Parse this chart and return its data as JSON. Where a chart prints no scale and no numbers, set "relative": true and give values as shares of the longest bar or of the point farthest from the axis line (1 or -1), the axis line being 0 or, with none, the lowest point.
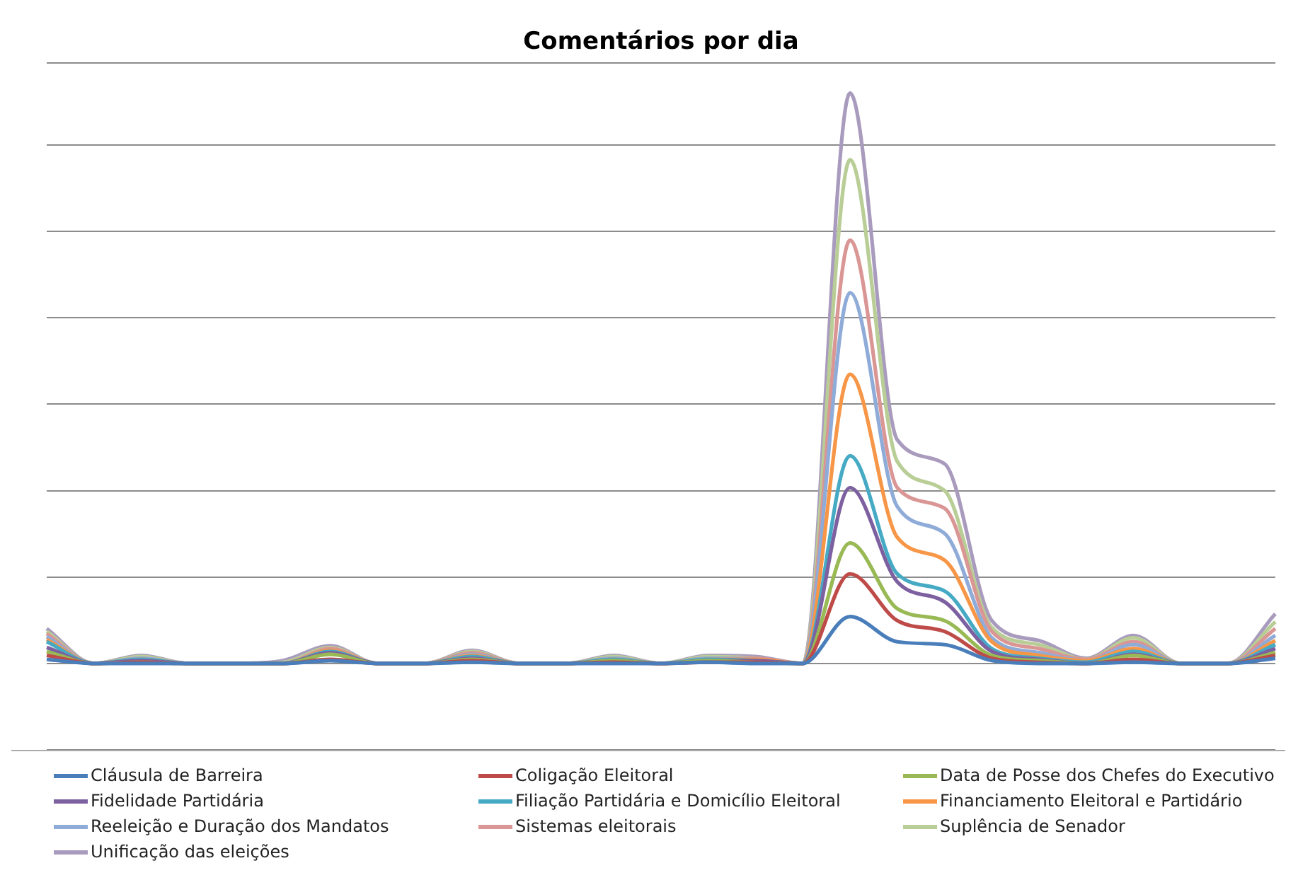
{
  "chart_data": {
    "type": "line",
    "title": "Comentários por dia",
    "relative": true,
    "grid": "y",
    "legend": "bottom",
    "marker": "none",
    "line_style": "solid",
    "categories": [
      null,
      null,
      null,
      null,
      null,
      null,
      null,
      null,
      null,
      null,
      null,
      null,
      null,
      null,
      null,
      null,
      null,
      null,
      null,
      null,
      null,
      null,
      null,
      null,
      null,
      null,
      null
    ],
    "series": [
      {
        "name": "Cláusula de Barreira",
        "color": "#4a7ebb",
        "values": [
          0.007,
          0,
          0,
          0,
          0,
          0,
          0.005,
          0,
          0,
          0.002,
          0,
          0,
          0,
          0,
          0.002,
          0,
          0,
          0.082,
          0.038,
          0.033,
          0.005,
          0,
          0,
          0.002,
          0,
          0,
          0.009
        ]
      },
      {
        "name": "Coligação Eleitoral",
        "color": "#be4b48",
        "values": [
          0.014,
          0,
          0.002,
          0,
          0,
          0,
          0.007,
          0,
          0,
          0.005,
          0,
          0,
          0.002,
          0,
          0.002,
          0.002,
          0,
          0.157,
          0.075,
          0.056,
          0.009,
          0.002,
          0,
          0.007,
          0,
          0,
          0.014
        ]
      },
      {
        "name": "Data de Posse dos Chefes do Executivo",
        "color": "#98b954",
        "values": [
          0.021,
          0,
          0.002,
          0,
          0,
          0,
          0.016,
          0,
          0,
          0.007,
          0,
          0,
          0.005,
          0,
          0.005,
          0.002,
          0,
          0.211,
          0.096,
          0.075,
          0.014,
          0.005,
          0,
          0.014,
          0,
          0,
          0.019
        ]
      },
      {
        "name": "Fidelidade Partidária",
        "color": "#7d60a0",
        "values": [
          0.028,
          0,
          0.005,
          0,
          0,
          0,
          0.019,
          0,
          0,
          0.009,
          0,
          0,
          0.005,
          0,
          0.005,
          0.005,
          0,
          0.308,
          0.143,
          0.108,
          0.021,
          0.007,
          0,
          0.016,
          0,
          0,
          0.026
        ]
      },
      {
        "name": "Filiação Partidária e Domicílio Eleitoral",
        "color": "#46aac5",
        "values": [
          0.038,
          0,
          0.007,
          0,
          0,
          0,
          0.021,
          0,
          0,
          0.012,
          0,
          0,
          0.007,
          0,
          0.007,
          0.005,
          0,
          0.364,
          0.157,
          0.127,
          0.026,
          0.009,
          0.002,
          0.021,
          0,
          0,
          0.033
        ]
      },
      {
        "name": "Financiamento Eleitoral e Partidário",
        "color": "#f79646",
        "values": [
          0.042,
          0,
          0.007,
          0,
          0,
          0,
          0.023,
          0,
          0,
          0.014,
          0,
          0,
          0.007,
          0,
          0.007,
          0.007,
          0,
          0.507,
          0.221,
          0.181,
          0.038,
          0.014,
          0.005,
          0.026,
          0,
          0,
          0.04
        ]
      },
      {
        "name": "Reeleição e Duração dos Mandatos",
        "color": "#8fabd8",
        "values": [
          0.047,
          0,
          0.009,
          0,
          0,
          0,
          0.023,
          0,
          0,
          0.016,
          0,
          0,
          0.009,
          0,
          0.009,
          0.007,
          0,
          0.65,
          0.275,
          0.228,
          0.045,
          0.019,
          0.005,
          0.033,
          0,
          0,
          0.049
        ]
      },
      {
        "name": "Sistemas eleitorais",
        "color": "#d99694",
        "values": [
          0.052,
          0,
          0.009,
          0,
          0,
          0,
          0.026,
          0,
          0,
          0.019,
          0,
          0,
          0.009,
          0,
          0.009,
          0.009,
          0,
          0.742,
          0.308,
          0.272,
          0.056,
          0.026,
          0.007,
          0.038,
          0,
          0,
          0.061
        ]
      },
      {
        "name": "Suplência de Senador",
        "color": "#b9cd96",
        "values": [
          0.056,
          0,
          0.012,
          0,
          0,
          0.002,
          0.028,
          0,
          0,
          0.021,
          0,
          0,
          0.012,
          0,
          0.012,
          0.009,
          0,
          0.883,
          0.354,
          0.303,
          0.063,
          0.033,
          0.007,
          0.045,
          0,
          0,
          0.073
        ]
      },
      {
        "name": "Unificação das eleições",
        "color": "#a99bbd",
        "values": [
          0.061,
          0,
          0.014,
          0,
          0,
          0.005,
          0.031,
          0,
          0,
          0.023,
          0,
          0,
          0.014,
          0,
          0.014,
          0.012,
          0,
          1,
          0.392,
          0.35,
          0.075,
          0.04,
          0.009,
          0.049,
          0,
          0,
          0.087
        ]
      }
    ]
  }
}
